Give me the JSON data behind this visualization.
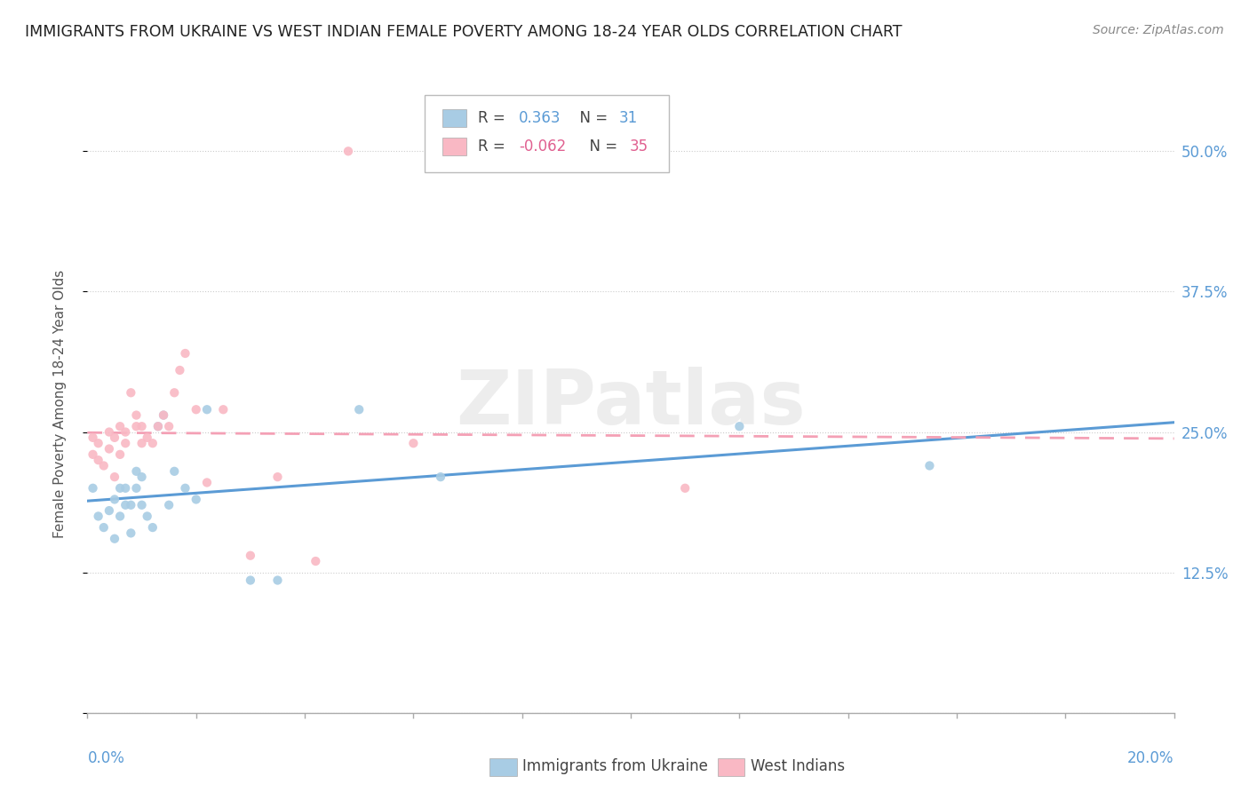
{
  "title": "IMMIGRANTS FROM UKRAINE VS WEST INDIAN FEMALE POVERTY AMONG 18-24 YEAR OLDS CORRELATION CHART",
  "source": "Source: ZipAtlas.com",
  "ylabel": "Female Poverty Among 18-24 Year Olds",
  "ylim": [
    0.0,
    0.55
  ],
  "xlim": [
    0.0,
    0.2
  ],
  "yticks": [
    0.0,
    0.125,
    0.25,
    0.375,
    0.5
  ],
  "ytick_labels": [
    "",
    "12.5%",
    "25.0%",
    "37.5%",
    "50.0%"
  ],
  "legend_blue_r": "0.363",
  "legend_blue_n": "31",
  "legend_pink_r": "-0.062",
  "legend_pink_n": "35",
  "blue_color": "#a8cce4",
  "pink_color": "#f9b8c4",
  "blue_line_color": "#5b9bd5",
  "pink_line_color": "#f4a0b5",
  "watermark": "ZIPatlas",
  "ukraine_x": [
    0.001,
    0.002,
    0.003,
    0.004,
    0.005,
    0.005,
    0.006,
    0.006,
    0.007,
    0.007,
    0.008,
    0.008,
    0.009,
    0.009,
    0.01,
    0.01,
    0.011,
    0.012,
    0.013,
    0.014,
    0.015,
    0.016,
    0.018,
    0.02,
    0.022,
    0.03,
    0.035,
    0.05,
    0.065,
    0.12,
    0.155
  ],
  "ukraine_y": [
    0.2,
    0.175,
    0.165,
    0.18,
    0.155,
    0.19,
    0.2,
    0.175,
    0.185,
    0.2,
    0.16,
    0.185,
    0.215,
    0.2,
    0.185,
    0.21,
    0.175,
    0.165,
    0.255,
    0.265,
    0.185,
    0.215,
    0.2,
    0.19,
    0.27,
    0.118,
    0.118,
    0.27,
    0.21,
    0.255,
    0.22
  ],
  "westindian_x": [
    0.001,
    0.001,
    0.002,
    0.002,
    0.003,
    0.004,
    0.004,
    0.005,
    0.005,
    0.006,
    0.006,
    0.007,
    0.007,
    0.008,
    0.009,
    0.009,
    0.01,
    0.01,
    0.011,
    0.012,
    0.013,
    0.014,
    0.015,
    0.016,
    0.017,
    0.018,
    0.02,
    0.022,
    0.025,
    0.03,
    0.035,
    0.042,
    0.048,
    0.06,
    0.11
  ],
  "westindian_y": [
    0.23,
    0.245,
    0.225,
    0.24,
    0.22,
    0.235,
    0.25,
    0.21,
    0.245,
    0.255,
    0.23,
    0.25,
    0.24,
    0.285,
    0.255,
    0.265,
    0.24,
    0.255,
    0.245,
    0.24,
    0.255,
    0.265,
    0.255,
    0.285,
    0.305,
    0.32,
    0.27,
    0.205,
    0.27,
    0.14,
    0.21,
    0.135,
    0.5,
    0.24,
    0.2
  ],
  "blue_label": "Immigrants from Ukraine",
  "pink_label": "West Indians"
}
